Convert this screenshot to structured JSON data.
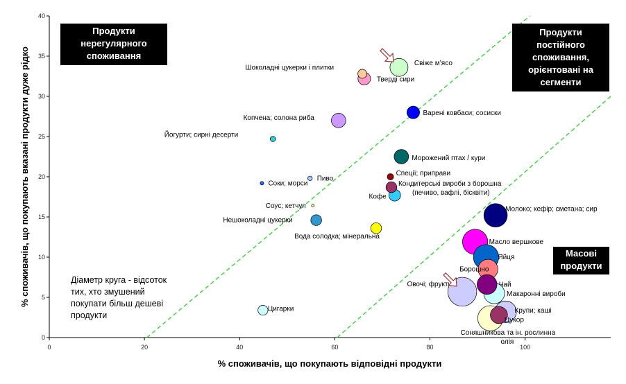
{
  "chart_data": {
    "type": "scatter",
    "xlabel": "% споживачів, що покупають відповідні продукти",
    "ylabel": "% споживачів, що покупають вказані продукти дуже рідко",
    "xlim": [
      0,
      118
    ],
    "ylim": [
      0,
      40
    ],
    "xticks": [
      0,
      20,
      40,
      60,
      80,
      100
    ],
    "yticks": [
      0,
      5,
      10,
      15,
      20,
      25,
      30,
      35,
      40
    ],
    "grid": false,
    "points": [
      {
        "label": "Свіже м’ясо",
        "x": 73.5,
        "y": 33.6,
        "size": 2.0,
        "color": "#ccffcc"
      },
      {
        "label": "Шоколадні цукерки і плитки",
        "x": 65.8,
        "y": 32.8,
        "size": 1.0,
        "color": "#ffcc99"
      },
      {
        "label": "Тверді сири",
        "x": 66.2,
        "y": 32.2,
        "size": 1.4,
        "color": "#ff99cc"
      },
      {
        "label": "Варені ковбаси; сосиски",
        "x": 76.5,
        "y": 28.0,
        "size": 1.4,
        "color": "#0000ff"
      },
      {
        "label": "Копчена; солона риба",
        "x": 60.8,
        "y": 27.0,
        "size": 1.6,
        "color": "#cc99ff"
      },
      {
        "label": "Йогурти; сирні десерти",
        "x": 47.0,
        "y": 24.7,
        "size": 0.6,
        "color": "#33cccc"
      },
      {
        "label": "Морожений птах / кури",
        "x": 74.0,
        "y": 22.5,
        "size": 1.6,
        "color": "#006666"
      },
      {
        "label": "Спеції; приправи",
        "x": 71.7,
        "y": 20.0,
        "size": 0.7,
        "color": "#990000"
      },
      {
        "label": "Пиво",
        "x": 54.8,
        "y": 19.8,
        "size": 0.5,
        "color": "#99ccff"
      },
      {
        "label": "Соки; морси",
        "x": 44.7,
        "y": 19.2,
        "size": 0.4,
        "color": "#3366ff"
      },
      {
        "label": "Кондитерські вироби з борошна\n(печиво, вафлі, бісквіти)",
        "x": 71.9,
        "y": 18.7,
        "size": 1.2,
        "color": "#993366"
      },
      {
        "label": "Кофе",
        "x": 72.6,
        "y": 17.7,
        "size": 1.3,
        "color": "#33ccff"
      },
      {
        "label": "Соус; кетчуп",
        "x": 55.4,
        "y": 16.4,
        "size": 0.3,
        "color": "#ffff99"
      },
      {
        "label": "Молоко; кефір; сметана; сир",
        "x": 93.8,
        "y": 15.2,
        "size": 2.6,
        "color": "#000080"
      },
      {
        "label": "Нешоколадні цукерки",
        "x": 56.1,
        "y": 14.6,
        "size": 1.2,
        "color": "#3399cc"
      },
      {
        "label": "Вода солодка; мінеральна",
        "x": 68.7,
        "y": 13.6,
        "size": 1.2,
        "color": "#ffff00"
      },
      {
        "label": "Масло вершкове",
        "x": 89.5,
        "y": 11.9,
        "size": 2.8,
        "color": "#ff00ff"
      },
      {
        "label": "Яйця",
        "x": 91.8,
        "y": 10.0,
        "size": 2.8,
        "color": "#0066cc"
      },
      {
        "label": "Борошно",
        "x": 92.2,
        "y": 8.5,
        "size": 2.2,
        "color": "#ff7c80"
      },
      {
        "label": "Чай",
        "x": 92.0,
        "y": 6.6,
        "size": 2.2,
        "color": "#800080"
      },
      {
        "label": "Макаронні вироби",
        "x": 93.5,
        "y": 5.5,
        "size": 2.3,
        "color": "#ccffff"
      },
      {
        "label": "Овочі; фрукти",
        "x": 86.8,
        "y": 5.7,
        "size": 3.2,
        "color": "#ccccff"
      },
      {
        "label": "Крупи; каші",
        "x": 95.9,
        "y": 3.2,
        "size": 2.4,
        "color": "#ccccff"
      },
      {
        "label": "Цукор",
        "x": 94.5,
        "y": 2.8,
        "size": 1.9,
        "color": "#993366"
      },
      {
        "label": "Соняшникова та ін. рослинна\nолія",
        "x": 92.7,
        "y": 2.4,
        "size": 2.8,
        "color": "#ffffcc"
      },
      {
        "label": "Цигарки",
        "x": 44.9,
        "y": 3.4,
        "size": 1.1,
        "color": "#ccffff"
      }
    ],
    "reference_lines": [
      {
        "from": [
          20.5,
          0
        ],
        "to": [
          101,
          40
        ],
        "color": "#33cc33",
        "style": "dashed"
      },
      {
        "from": [
          60.5,
          0
        ],
        "to": [
          118,
          30
        ],
        "color": "#33cc33",
        "style": "dashed"
      }
    ],
    "arrows": [
      {
        "target": "Свіже м’ясо"
      },
      {
        "target": "Овочі; фрукти"
      }
    ]
  },
  "annotations": {
    "top_left": "Продукти\nнерегулярного\nспоживання",
    "top_right": "Продукти\nпостійного\nспоживання,\nорієнтовані на\nсегменти",
    "bottom_right": "Масові\nпродукти",
    "note": "Діаметр круга - відсоток\nтих, хто змушений\nпокупати більш дешеві\nпродукти"
  }
}
